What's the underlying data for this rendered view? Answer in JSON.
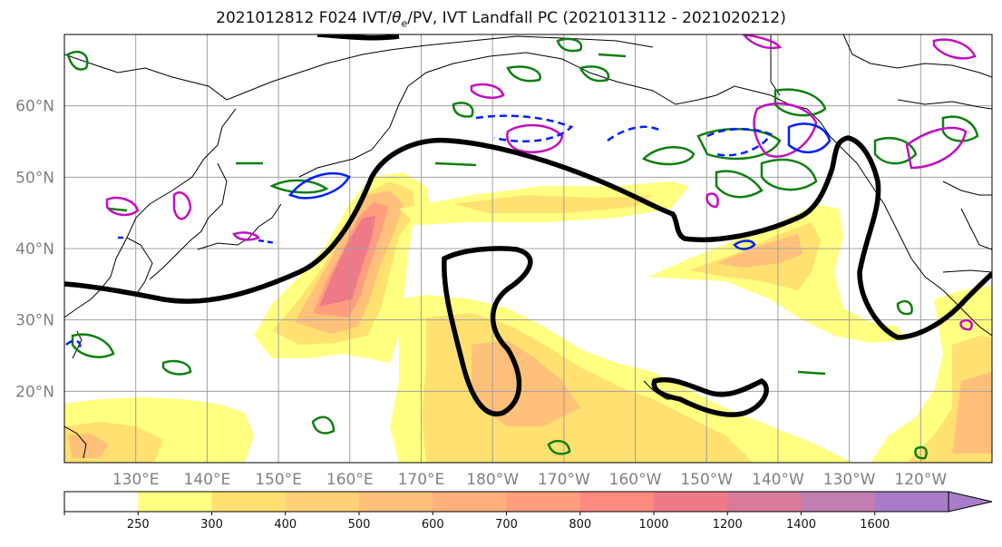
{
  "title": {
    "prefix": "2021012812 F024 IVT/",
    "theta": "θ",
    "theta_sub": "e",
    "suffix": "/PV, IVT Landfall PC (2021013112 - 2021020212)"
  },
  "axes": {
    "lat_labels": [
      {
        "text": "60°N",
        "lat": 60
      },
      {
        "text": "50°N",
        "lat": 50
      },
      {
        "text": "40°N",
        "lat": 40
      },
      {
        "text": "30°N",
        "lat": 30
      },
      {
        "text": "20°N",
        "lat": 20
      }
    ],
    "lon_labels": [
      {
        "text": "130°E",
        "lon": 130
      },
      {
        "text": "140°E",
        "lon": 140
      },
      {
        "text": "150°E",
        "lon": 150
      },
      {
        "text": "160°E",
        "lon": 160
      },
      {
        "text": "170°E",
        "lon": 170
      },
      {
        "text": "180°W",
        "lon": 180
      },
      {
        "text": "170°W",
        "lon": 190
      },
      {
        "text": "160°W",
        "lon": 200
      },
      {
        "text": "150°W",
        "lon": 210
      },
      {
        "text": "140°W",
        "lon": 220
      },
      {
        "text": "130°W",
        "lon": 230
      },
      {
        "text": "120°W",
        "lon": 240
      }
    ],
    "lon_range": [
      120,
      250
    ],
    "lat_range": [
      10,
      70
    ]
  },
  "colorbar": {
    "colors": [
      "#ffffff",
      "#ffff80",
      "#ffe070",
      "#ffd078",
      "#ffc07a",
      "#ffb07c",
      "#ff9e7e",
      "#ff8a80",
      "#ee7a88",
      "#d97a98",
      "#c17eb0",
      "#a87cc8"
    ],
    "labels": [
      "250",
      "300",
      "400",
      "500",
      "600",
      "700",
      "800",
      "1000",
      "1200",
      "1400",
      "1600"
    ]
  },
  "colors": {
    "pc_contour": "#000000",
    "pv_positive": "#c010c0",
    "pv_negative": "#0020ff",
    "theta_e": "#108010",
    "coastline": "#000000",
    "grid": "#a0a0a0"
  }
}
